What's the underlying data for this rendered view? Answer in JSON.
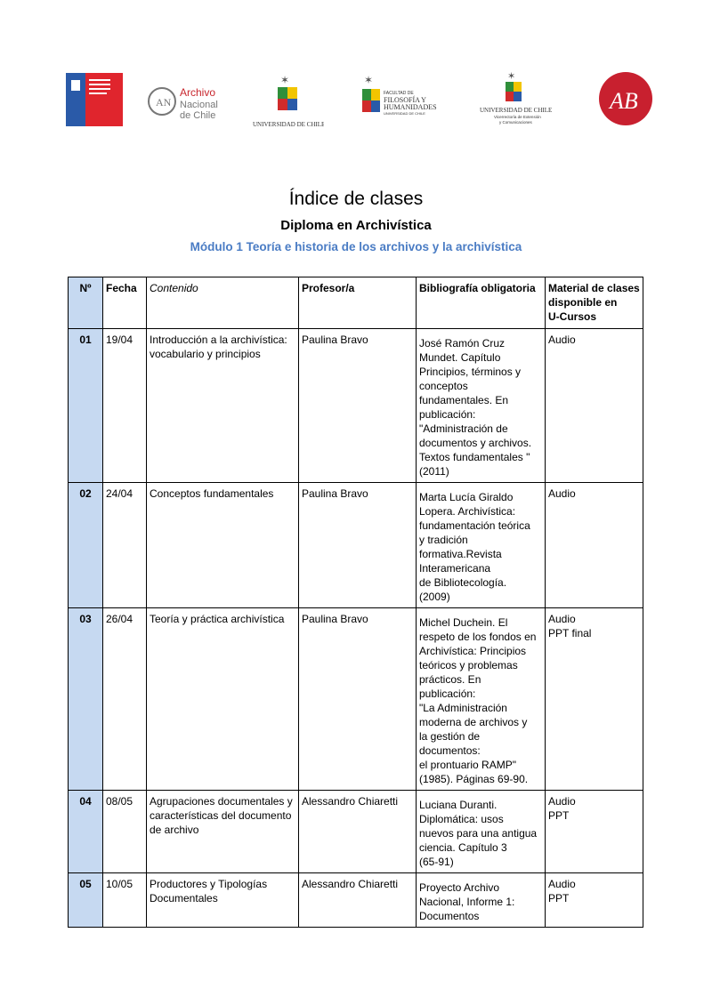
{
  "logos": [
    "Ministerio de las Culturas, las Artes y el Patrimonio - Gobierno de Chile",
    "Archivo Nacional de Chile",
    "Universidad de Chile",
    "Facultad de Filosofía y Humanidades - Universidad de Chile",
    "Universidad de Chile - Vicerrectoría de Extensión y Comunicaciones",
    "Archivo Central Andrés Bello"
  ],
  "title": "Índice de clases",
  "subtitle": "Diploma en Archivística",
  "module": "Módulo 1 Teoría e historia de los archivos y la archivística",
  "colors": {
    "accent": "#4a7cc4",
    "number_column": "#c6d9f1"
  },
  "table": {
    "headers": [
      "Nº",
      "Fecha",
      "Contenido",
      "Profesor/a",
      "Bibliografía obligatoria",
      "Material de clases\ndisponible en\nU-Cursos"
    ],
    "rows": [
      {
        "n": "01",
        "fecha": "19/04",
        "contenido": "Introducción a la archivística:\nvocabulario y principios",
        "profesor": "Paulina Bravo",
        "bibliografia": "José Ramón Cruz\nMundet. Capítulo\nPrincipios, términos y\nconceptos\nfundamentales. En\npublicación:\n\"Administración de\ndocumentos y archivos.\nTextos fundamentales \"\n(2011)",
        "material": "Audio"
      },
      {
        "n": "02",
        "fecha": "24/04",
        "contenido": "Conceptos fundamentales",
        "profesor": "Paulina Bravo",
        "bibliografia": "Marta Lucía Giraldo\nLopera. Archivística:\nfundamentación teórica\ny tradición\nformativa.Revista\nInteramericana\nde Bibliotecología.\n(2009)",
        "material": "Audio"
      },
      {
        "n": "03",
        "fecha": "26/04",
        "contenido": "Teoría y práctica archivística",
        "profesor": "Paulina Bravo",
        "bibliografia": "Michel Duchein. El\nrespeto de los fondos en\nArchivística: Principios\nteóricos y problemas\nprácticos. En\npublicación:\n\"La Administración\nmoderna de archivos y\nla gestión de\ndocumentos:\nel prontuario RAMP\"\n(1985). Páginas 69-90.",
        "material": "Audio\nPPT final"
      },
      {
        "n": "04",
        "fecha": "08/05",
        "contenido": "Agrupaciones documentales y\ncaracterísticas del documento\nde archivo",
        "profesor": "Alessandro Chiaretti",
        "bibliografia": "Luciana Duranti.\nDiplomática: usos\nnuevos para una antigua\nciencia. Capítulo 3\n(65-91)",
        "material": "Audio\nPPT"
      },
      {
        "n": "05",
        "fecha": "10/05",
        "contenido": "Productores y Tipologías\nDocumentales",
        "profesor": "Alessandro Chiaretti",
        "bibliografia": "Proyecto Archivo\nNacional, Informe 1:\nDocumentos",
        "material": "Audio\nPPT"
      }
    ]
  }
}
